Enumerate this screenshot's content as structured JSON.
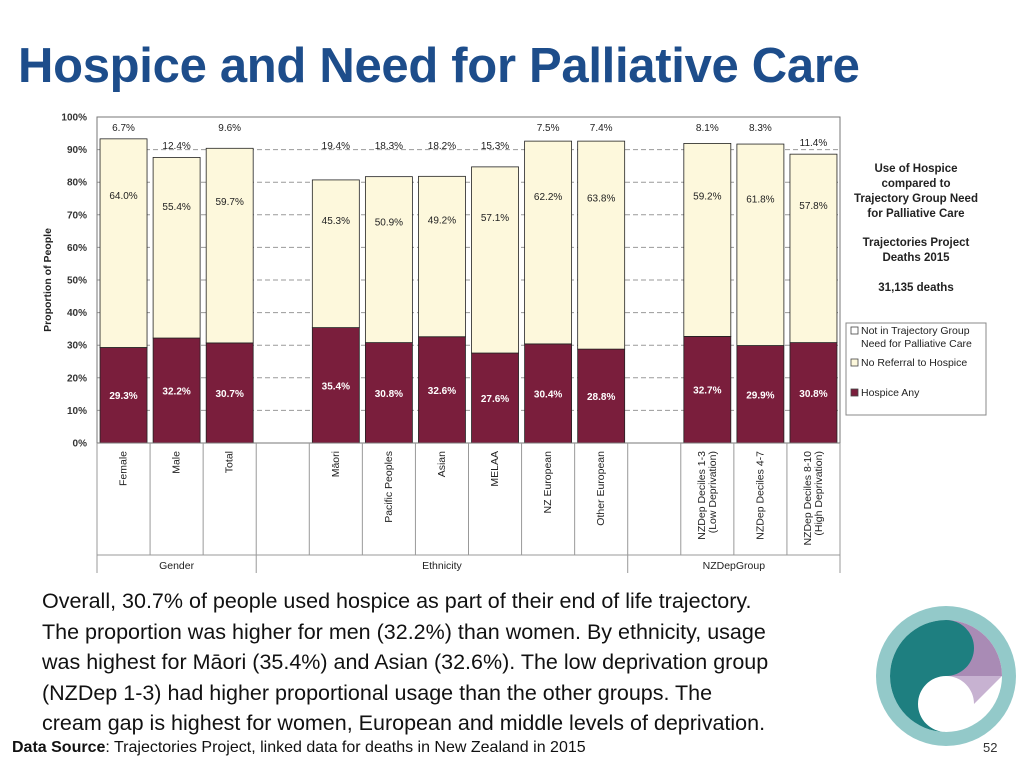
{
  "slide": {
    "title": "Hospice and Need for Palliative Care",
    "summary_lines": [
      "Overall, 30.7% of people used hospice as part of their end of life trajectory.",
      "The proportion was higher for men (32.2%) than women. By ethnicity, usage",
      "was highest for Māori (35.4%) and Asian (32.6%). The low deprivation group",
      "(NZDep 1-3) had higher proportional usage than the other groups. The",
      "cream gap is highest for women, European and middle levels of deprivation."
    ],
    "source_label": "Data Source",
    "source_text": ": Trajectories Project, linked data for deaths in New Zealand in 2015",
    "page_number": "52"
  },
  "chart_data": {
    "type": "bar",
    "stacked": true,
    "ylabel": "Proportion of People",
    "ylim": [
      0,
      100
    ],
    "yticks": [
      "0%",
      "10%",
      "20%",
      "30%",
      "40%",
      "50%",
      "60%",
      "70%",
      "80%",
      "90%",
      "100%"
    ],
    "grid": true,
    "legend_position": "right",
    "categories": [
      "Female",
      "Male",
      "Total",
      "",
      "Māori",
      "Pacific Peoples",
      "Asian",
      "MELAA",
      "NZ European",
      "Other  European",
      "",
      "NZDep Deciles 1-3|(Low Deprivation)",
      "NZDep Deciles 4-7",
      "NZDep Deciles 8-10|(High Deprivation)"
    ],
    "groups": [
      {
        "label": "Gender",
        "span": [
          0,
          3
        ]
      },
      {
        "label": "Ethnicity",
        "span": [
          3,
          10
        ]
      },
      {
        "label": "NZDepGroup",
        "span": [
          10,
          14
        ]
      }
    ],
    "series": [
      {
        "name": "Hospice Any",
        "color": "#7a1e3c",
        "values": [
          29.3,
          32.2,
          30.7,
          null,
          35.4,
          30.8,
          32.6,
          27.6,
          30.4,
          28.8,
          null,
          32.7,
          29.9,
          30.8
        ]
      },
      {
        "name": "No Referral to Hospice",
        "color": "#fdf8dc",
        "values": [
          64.0,
          55.4,
          59.7,
          null,
          45.3,
          50.9,
          49.2,
          57.1,
          62.2,
          63.8,
          null,
          59.2,
          61.8,
          57.8
        ]
      },
      {
        "name": "Not in Trajectory Group|Need for Palliative Care",
        "color": "#ffffff",
        "values": [
          6.7,
          12.4,
          9.6,
          null,
          19.4,
          18.3,
          18.2,
          15.3,
          7.5,
          7.4,
          null,
          8.1,
          8.3,
          11.4
        ]
      }
    ],
    "annotations": [
      "Use of Hospice",
      "compared to",
      "Trajectory Group  Need",
      "for Palliative  Care",
      "Trajectories Project",
      "Deaths 2015",
      "31,135 deaths"
    ]
  }
}
